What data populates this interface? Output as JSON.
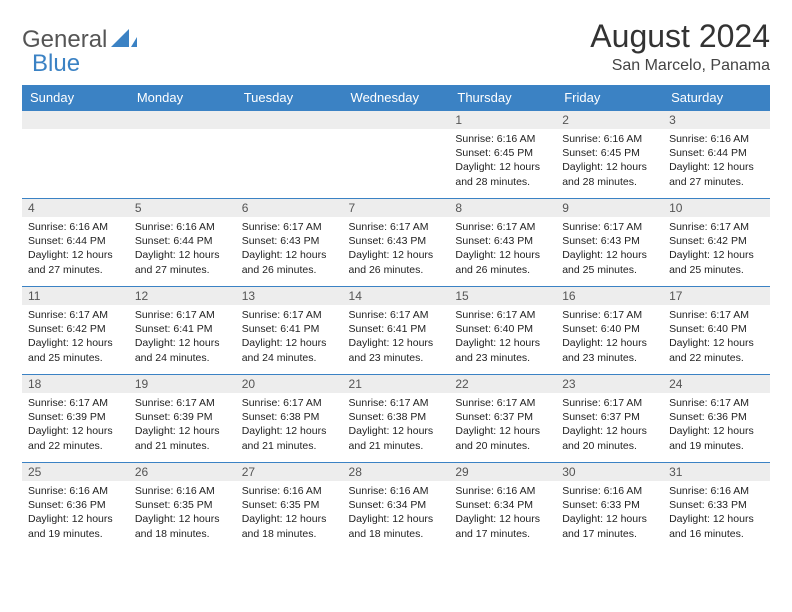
{
  "brand": {
    "part1": "General",
    "part2": "Blue",
    "accent": "#3b82c4",
    "text_color": "#555"
  },
  "title": "August 2024",
  "location": "San Marcelo, Panama",
  "calendar": {
    "header_bg": "#3b82c4",
    "header_fg": "#ffffff",
    "daynum_bg": "#ededed",
    "border_color": "#3b82c4",
    "body_fontsize": 10.5,
    "columns": [
      "Sunday",
      "Monday",
      "Tuesday",
      "Wednesday",
      "Thursday",
      "Friday",
      "Saturday"
    ],
    "weeks": [
      [
        {
          "day": "",
          "lines": []
        },
        {
          "day": "",
          "lines": []
        },
        {
          "day": "",
          "lines": []
        },
        {
          "day": "",
          "lines": []
        },
        {
          "day": "1",
          "lines": [
            "Sunrise: 6:16 AM",
            "Sunset: 6:45 PM",
            "Daylight: 12 hours and 28 minutes."
          ]
        },
        {
          "day": "2",
          "lines": [
            "Sunrise: 6:16 AM",
            "Sunset: 6:45 PM",
            "Daylight: 12 hours and 28 minutes."
          ]
        },
        {
          "day": "3",
          "lines": [
            "Sunrise: 6:16 AM",
            "Sunset: 6:44 PM",
            "Daylight: 12 hours and 27 minutes."
          ]
        }
      ],
      [
        {
          "day": "4",
          "lines": [
            "Sunrise: 6:16 AM",
            "Sunset: 6:44 PM",
            "Daylight: 12 hours and 27 minutes."
          ]
        },
        {
          "day": "5",
          "lines": [
            "Sunrise: 6:16 AM",
            "Sunset: 6:44 PM",
            "Daylight: 12 hours and 27 minutes."
          ]
        },
        {
          "day": "6",
          "lines": [
            "Sunrise: 6:17 AM",
            "Sunset: 6:43 PM",
            "Daylight: 12 hours and 26 minutes."
          ]
        },
        {
          "day": "7",
          "lines": [
            "Sunrise: 6:17 AM",
            "Sunset: 6:43 PM",
            "Daylight: 12 hours and 26 minutes."
          ]
        },
        {
          "day": "8",
          "lines": [
            "Sunrise: 6:17 AM",
            "Sunset: 6:43 PM",
            "Daylight: 12 hours and 26 minutes."
          ]
        },
        {
          "day": "9",
          "lines": [
            "Sunrise: 6:17 AM",
            "Sunset: 6:43 PM",
            "Daylight: 12 hours and 25 minutes."
          ]
        },
        {
          "day": "10",
          "lines": [
            "Sunrise: 6:17 AM",
            "Sunset: 6:42 PM",
            "Daylight: 12 hours and 25 minutes."
          ]
        }
      ],
      [
        {
          "day": "11",
          "lines": [
            "Sunrise: 6:17 AM",
            "Sunset: 6:42 PM",
            "Daylight: 12 hours and 25 minutes."
          ]
        },
        {
          "day": "12",
          "lines": [
            "Sunrise: 6:17 AM",
            "Sunset: 6:41 PM",
            "Daylight: 12 hours and 24 minutes."
          ]
        },
        {
          "day": "13",
          "lines": [
            "Sunrise: 6:17 AM",
            "Sunset: 6:41 PM",
            "Daylight: 12 hours and 24 minutes."
          ]
        },
        {
          "day": "14",
          "lines": [
            "Sunrise: 6:17 AM",
            "Sunset: 6:41 PM",
            "Daylight: 12 hours and 23 minutes."
          ]
        },
        {
          "day": "15",
          "lines": [
            "Sunrise: 6:17 AM",
            "Sunset: 6:40 PM",
            "Daylight: 12 hours and 23 minutes."
          ]
        },
        {
          "day": "16",
          "lines": [
            "Sunrise: 6:17 AM",
            "Sunset: 6:40 PM",
            "Daylight: 12 hours and 23 minutes."
          ]
        },
        {
          "day": "17",
          "lines": [
            "Sunrise: 6:17 AM",
            "Sunset: 6:40 PM",
            "Daylight: 12 hours and 22 minutes."
          ]
        }
      ],
      [
        {
          "day": "18",
          "lines": [
            "Sunrise: 6:17 AM",
            "Sunset: 6:39 PM",
            "Daylight: 12 hours and 22 minutes."
          ]
        },
        {
          "day": "19",
          "lines": [
            "Sunrise: 6:17 AM",
            "Sunset: 6:39 PM",
            "Daylight: 12 hours and 21 minutes."
          ]
        },
        {
          "day": "20",
          "lines": [
            "Sunrise: 6:17 AM",
            "Sunset: 6:38 PM",
            "Daylight: 12 hours and 21 minutes."
          ]
        },
        {
          "day": "21",
          "lines": [
            "Sunrise: 6:17 AM",
            "Sunset: 6:38 PM",
            "Daylight: 12 hours and 21 minutes."
          ]
        },
        {
          "day": "22",
          "lines": [
            "Sunrise: 6:17 AM",
            "Sunset: 6:37 PM",
            "Daylight: 12 hours and 20 minutes."
          ]
        },
        {
          "day": "23",
          "lines": [
            "Sunrise: 6:17 AM",
            "Sunset: 6:37 PM",
            "Daylight: 12 hours and 20 minutes."
          ]
        },
        {
          "day": "24",
          "lines": [
            "Sunrise: 6:17 AM",
            "Sunset: 6:36 PM",
            "Daylight: 12 hours and 19 minutes."
          ]
        }
      ],
      [
        {
          "day": "25",
          "lines": [
            "Sunrise: 6:16 AM",
            "Sunset: 6:36 PM",
            "Daylight: 12 hours and 19 minutes."
          ]
        },
        {
          "day": "26",
          "lines": [
            "Sunrise: 6:16 AM",
            "Sunset: 6:35 PM",
            "Daylight: 12 hours and 18 minutes."
          ]
        },
        {
          "day": "27",
          "lines": [
            "Sunrise: 6:16 AM",
            "Sunset: 6:35 PM",
            "Daylight: 12 hours and 18 minutes."
          ]
        },
        {
          "day": "28",
          "lines": [
            "Sunrise: 6:16 AM",
            "Sunset: 6:34 PM",
            "Daylight: 12 hours and 18 minutes."
          ]
        },
        {
          "day": "29",
          "lines": [
            "Sunrise: 6:16 AM",
            "Sunset: 6:34 PM",
            "Daylight: 12 hours and 17 minutes."
          ]
        },
        {
          "day": "30",
          "lines": [
            "Sunrise: 6:16 AM",
            "Sunset: 6:33 PM",
            "Daylight: 12 hours and 17 minutes."
          ]
        },
        {
          "day": "31",
          "lines": [
            "Sunrise: 6:16 AM",
            "Sunset: 6:33 PM",
            "Daylight: 12 hours and 16 minutes."
          ]
        }
      ]
    ]
  }
}
